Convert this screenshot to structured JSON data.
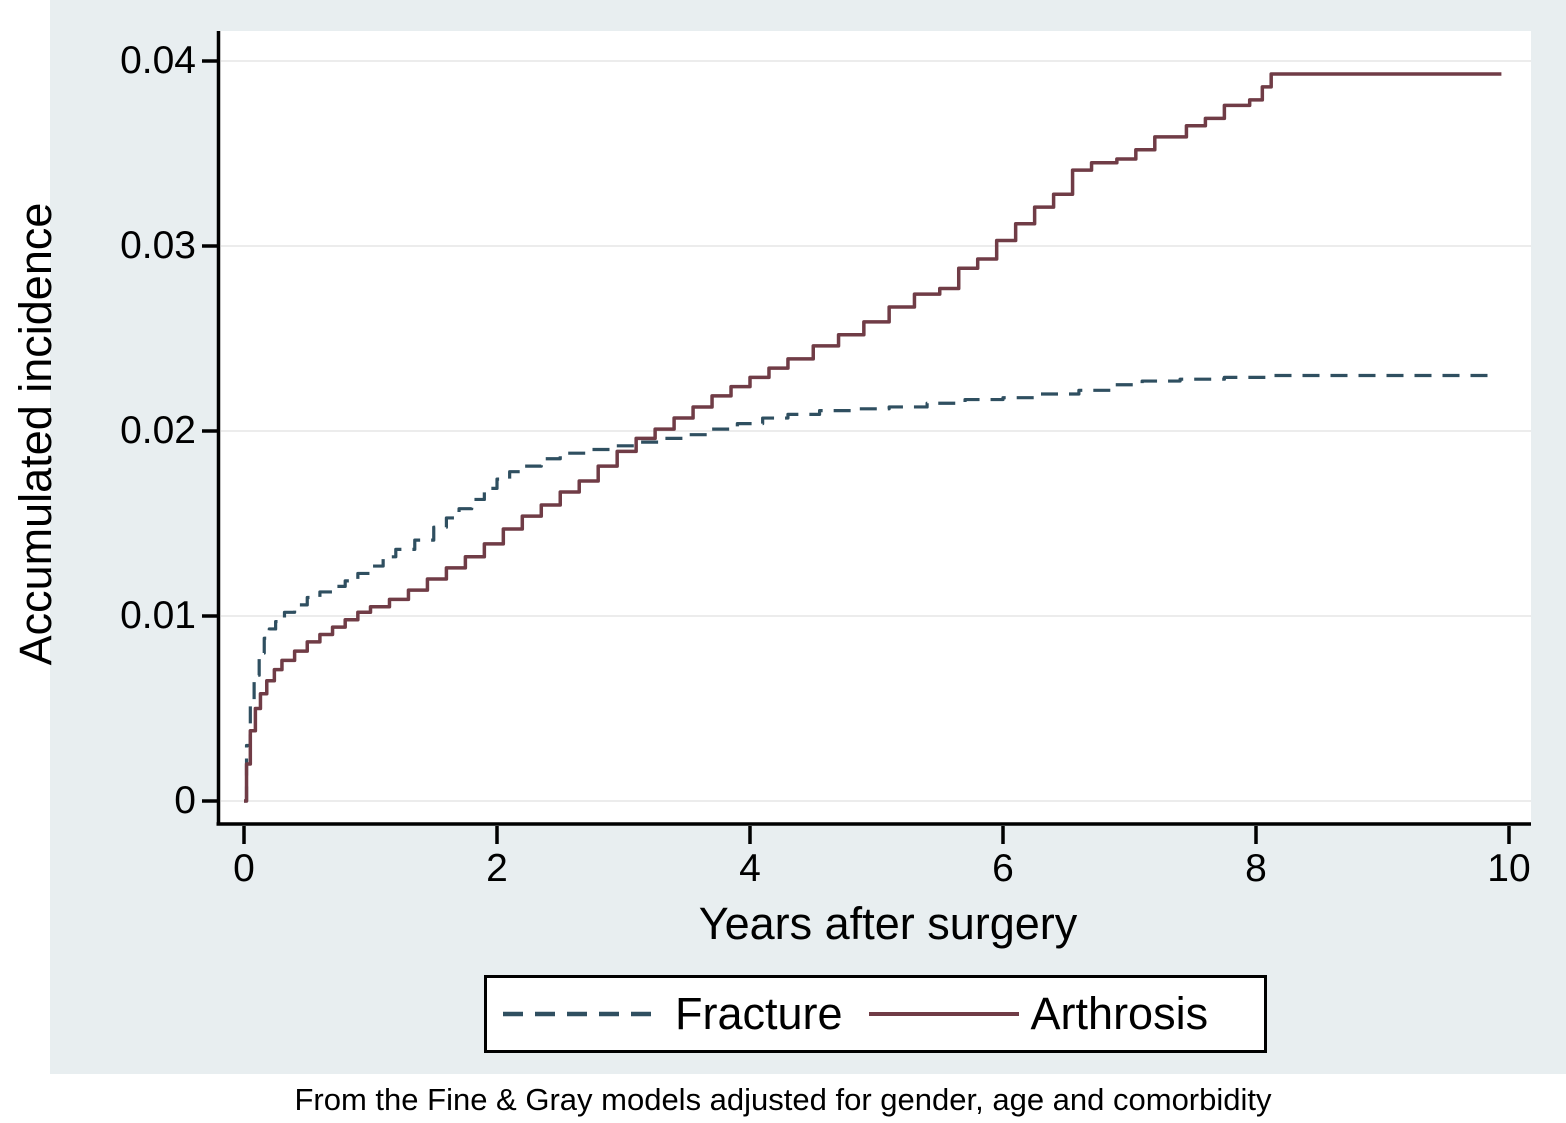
{
  "figure": {
    "background_color": "#e8eef0",
    "plot_background": "#ffffff",
    "gridline_color": "#ececec",
    "axis_color": "#000000"
  },
  "chart_data": {
    "type": "line",
    "step": true,
    "title": "",
    "xlabel": "Years after surgery",
    "ylabel": "Accumulated incidence",
    "caption": "From the Fine & Gray models adjusted for gender, age and comorbidity",
    "xlim": [
      0,
      10
    ],
    "ylim": [
      0,
      0.04
    ],
    "grid": true,
    "legend_position": "bottom",
    "x_ticks": {
      "values": [
        0,
        2,
        4,
        6,
        8,
        10
      ],
      "labels": [
        "0",
        "2",
        "4",
        "6",
        "8",
        "10"
      ]
    },
    "y_ticks": {
      "values": [
        0,
        0.01,
        0.02,
        0.03,
        0.04
      ],
      "labels": [
        "0",
        "0.01",
        "0.02",
        "0.03",
        "0.04"
      ]
    },
    "series": [
      {
        "name": "Fracture",
        "style": "dashed",
        "color": "#2f4f60",
        "x": [
          0,
          0.02,
          0.05,
          0.08,
          0.12,
          0.16,
          0.2,
          0.25,
          0.32,
          0.4,
          0.5,
          0.6,
          0.7,
          0.8,
          0.9,
          1.0,
          1.1,
          1.2,
          1.35,
          1.5,
          1.6,
          1.7,
          1.8,
          1.9,
          2.0,
          2.1,
          2.2,
          2.35,
          2.5,
          2.7,
          2.9,
          3.1,
          3.3,
          3.5,
          3.7,
          3.9,
          4.1,
          4.3,
          4.55,
          4.8,
          5.1,
          5.4,
          5.7,
          6.0,
          6.3,
          6.6,
          6.85,
          7.1,
          7.4,
          7.75,
          8.1,
          8.8,
          9.87
        ],
        "y": [
          0,
          0.003,
          0.0052,
          0.0068,
          0.008,
          0.0088,
          0.0093,
          0.0097,
          0.0102,
          0.0106,
          0.011,
          0.0113,
          0.0116,
          0.0119,
          0.0123,
          0.0127,
          0.0132,
          0.0136,
          0.0141,
          0.0148,
          0.0153,
          0.0158,
          0.0163,
          0.0169,
          0.0174,
          0.0178,
          0.0181,
          0.0185,
          0.0188,
          0.019,
          0.0192,
          0.0194,
          0.0196,
          0.0198,
          0.0201,
          0.0204,
          0.0207,
          0.0209,
          0.0211,
          0.0212,
          0.0213,
          0.0215,
          0.0217,
          0.0218,
          0.022,
          0.0222,
          0.0225,
          0.0227,
          0.0228,
          0.0229,
          0.023,
          0.023,
          0.0231
        ]
      },
      {
        "name": "Arthrosis",
        "style": "solid",
        "color": "#703c46",
        "x": [
          0,
          0.02,
          0.05,
          0.09,
          0.13,
          0.18,
          0.24,
          0.3,
          0.4,
          0.5,
          0.6,
          0.7,
          0.8,
          0.9,
          1.0,
          1.15,
          1.3,
          1.45,
          1.6,
          1.75,
          1.9,
          2.05,
          2.2,
          2.35,
          2.5,
          2.65,
          2.8,
          2.95,
          3.1,
          3.25,
          3.4,
          3.55,
          3.7,
          3.85,
          4.0,
          4.15,
          4.3,
          4.5,
          4.7,
          4.9,
          5.1,
          5.3,
          5.5,
          5.65,
          5.8,
          5.95,
          6.1,
          6.25,
          6.4,
          6.55,
          6.7,
          6.9,
          7.05,
          7.2,
          7.45,
          7.6,
          7.75,
          7.95,
          8.05,
          8.12,
          9.94
        ],
        "y": [
          0,
          0.002,
          0.0038,
          0.005,
          0.0058,
          0.0065,
          0.0071,
          0.0076,
          0.0081,
          0.0086,
          0.009,
          0.0094,
          0.0098,
          0.0102,
          0.0105,
          0.0109,
          0.0114,
          0.012,
          0.0126,
          0.0132,
          0.0139,
          0.0147,
          0.0154,
          0.016,
          0.0167,
          0.0173,
          0.0181,
          0.0189,
          0.0196,
          0.0201,
          0.0207,
          0.0213,
          0.0219,
          0.0224,
          0.0229,
          0.0234,
          0.0239,
          0.0246,
          0.0252,
          0.0259,
          0.0267,
          0.0274,
          0.0277,
          0.0288,
          0.0293,
          0.0303,
          0.0312,
          0.0321,
          0.0328,
          0.0341,
          0.0345,
          0.0347,
          0.0352,
          0.0359,
          0.0365,
          0.0369,
          0.0376,
          0.0379,
          0.0386,
          0.0393,
          0.0393
        ]
      }
    ]
  },
  "legend": {
    "items": [
      {
        "label": "Fracture"
      },
      {
        "label": "Arthrosis"
      }
    ]
  }
}
